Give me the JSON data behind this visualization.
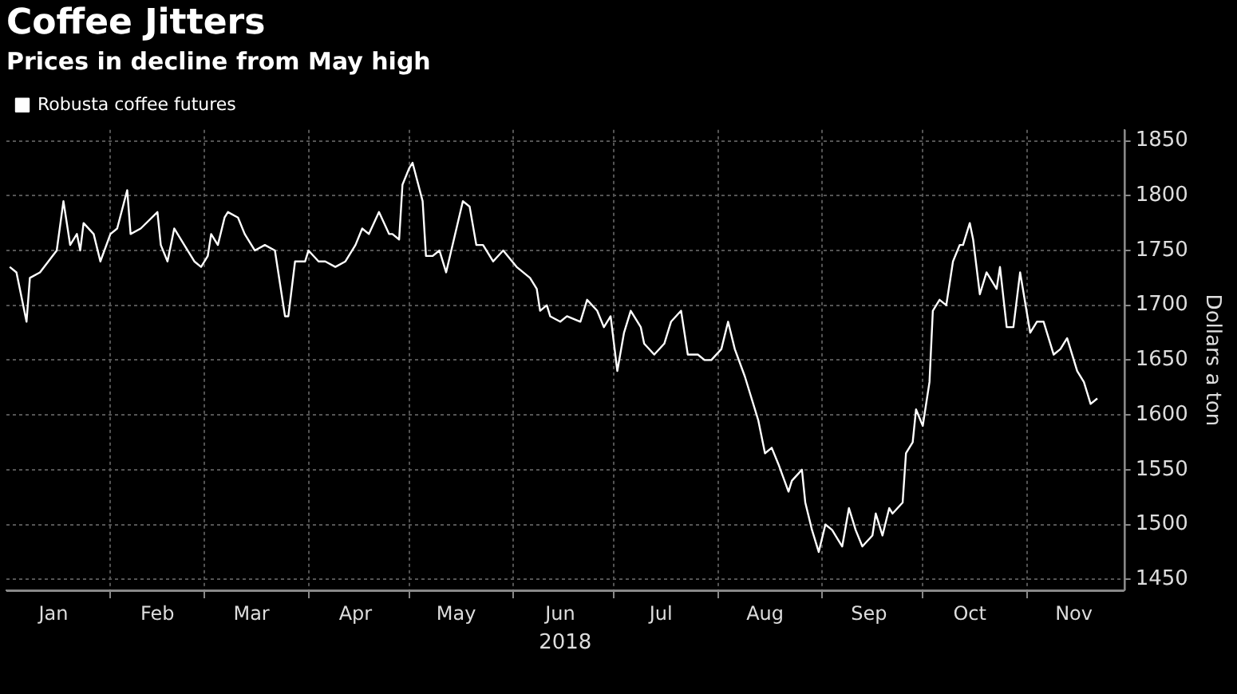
{
  "chart_data": {
    "type": "line",
    "title": "Coffee Jitters",
    "subtitle": "Prices in decline from May high",
    "xlabel": "2018",
    "ylabel": "Dollars a ton",
    "x": [
      "2018-01-02",
      "2018-01-04",
      "2018-01-07",
      "2018-01-08",
      "2018-01-11",
      "2018-01-16",
      "2018-01-18",
      "2018-01-20",
      "2018-01-22",
      "2018-01-23",
      "2018-01-24",
      "2018-01-27",
      "2018-01-29",
      "2018-02-01",
      "2018-02-03",
      "2018-02-06",
      "2018-02-07",
      "2018-02-10",
      "2018-02-15",
      "2018-02-16",
      "2018-02-18",
      "2018-02-20",
      "2018-02-23",
      "2018-02-26",
      "2018-02-28",
      "2018-03-02",
      "2018-03-03",
      "2018-03-05",
      "2018-03-07",
      "2018-03-08",
      "2018-03-11",
      "2018-03-13",
      "2018-03-16",
      "2018-03-19",
      "2018-03-22",
      "2018-03-25",
      "2018-03-26",
      "2018-03-28",
      "2018-03-31",
      "2018-04-01",
      "2018-04-04",
      "2018-04-06",
      "2018-04-09",
      "2018-04-12",
      "2018-04-15",
      "2018-04-17",
      "2018-04-19",
      "2018-04-22",
      "2018-04-25",
      "2018-04-26",
      "2018-04-28",
      "2018-04-29",
      "2018-05-01",
      "2018-05-02",
      "2018-05-05",
      "2018-05-06",
      "2018-05-08",
      "2018-05-10",
      "2018-05-12",
      "2018-05-17",
      "2018-05-19",
      "2018-05-21",
      "2018-05-23",
      "2018-05-26",
      "2018-05-29",
      "2018-06-02",
      "2018-06-06",
      "2018-06-08",
      "2018-06-09",
      "2018-06-11",
      "2018-06-12",
      "2018-06-15",
      "2018-06-17",
      "2018-06-21",
      "2018-06-23",
      "2018-06-26",
      "2018-06-28",
      "2018-06-30",
      "2018-07-02",
      "2018-07-04",
      "2018-07-06",
      "2018-07-09",
      "2018-07-10",
      "2018-07-13",
      "2018-07-16",
      "2018-07-18",
      "2018-07-21",
      "2018-07-23",
      "2018-07-26",
      "2018-07-28",
      "2018-07-30",
      "2018-08-02",
      "2018-08-04",
      "2018-08-06",
      "2018-08-09",
      "2018-08-10",
      "2018-08-13",
      "2018-08-15",
      "2018-08-17",
      "2018-08-19",
      "2018-08-22",
      "2018-08-23",
      "2018-08-26",
      "2018-08-27",
      "2018-08-29",
      "2018-08-31",
      "2018-09-02",
      "2018-09-04",
      "2018-09-05",
      "2018-09-07",
      "2018-09-09",
      "2018-09-11",
      "2018-09-13",
      "2018-09-16",
      "2018-09-17",
      "2018-09-19",
      "2018-09-21",
      "2018-09-22",
      "2018-09-25",
      "2018-09-26",
      "2018-09-28",
      "2018-09-29",
      "2018-10-01",
      "2018-10-03",
      "2018-10-04",
      "2018-10-06",
      "2018-10-08",
      "2018-10-10",
      "2018-10-12",
      "2018-10-13",
      "2018-10-15",
      "2018-10-16",
      "2018-10-18",
      "2018-10-20",
      "2018-10-23",
      "2018-10-24",
      "2018-10-26",
      "2018-10-28",
      "2018-10-30",
      "2018-11-02",
      "2018-11-04",
      "2018-11-06",
      "2018-11-09",
      "2018-11-11",
      "2018-11-13",
      "2018-11-16",
      "2018-11-18",
      "2018-11-20",
      "2018-11-22"
    ],
    "series": [
      {
        "name": "Robusta coffee futures",
        "color": "#ffffff",
        "values": [
          1735,
          1730,
          1685,
          1725,
          1730,
          1750,
          1795,
          1755,
          1765,
          1750,
          1775,
          1765,
          1740,
          1765,
          1770,
          1805,
          1765,
          1770,
          1785,
          1755,
          1740,
          1770,
          1755,
          1740,
          1735,
          1745,
          1765,
          1755,
          1780,
          1785,
          1780,
          1765,
          1750,
          1755,
          1750,
          1690,
          1690,
          1740,
          1740,
          1750,
          1740,
          1740,
          1735,
          1740,
          1755,
          1770,
          1765,
          1785,
          1765,
          1765,
          1760,
          1810,
          1825,
          1830,
          1795,
          1745,
          1745,
          1750,
          1730,
          1795,
          1790,
          1755,
          1755,
          1740,
          1750,
          1735,
          1725,
          1715,
          1695,
          1700,
          1690,
          1685,
          1690,
          1685,
          1705,
          1695,
          1680,
          1690,
          1640,
          1675,
          1695,
          1680,
          1665,
          1655,
          1665,
          1685,
          1695,
          1655,
          1655,
          1650,
          1650,
          1660,
          1685,
          1660,
          1635,
          1625,
          1595,
          1565,
          1570,
          1555,
          1530,
          1540,
          1550,
          1520,
          1495,
          1475,
          1500,
          1495,
          1490,
          1480,
          1515,
          1495,
          1480,
          1490,
          1510,
          1490,
          1515,
          1510,
          1520,
          1565,
          1575,
          1605,
          1590,
          1630,
          1695,
          1705,
          1700,
          1740,
          1755,
          1755,
          1775,
          1760,
          1710,
          1730,
          1715,
          1735,
          1680,
          1680,
          1730,
          1675,
          1685,
          1685,
          1655,
          1660,
          1670,
          1640,
          1630,
          1610,
          1615
        ]
      }
    ],
    "xlim": [
      "2018-01-01",
      "2018-11-30"
    ],
    "xticks": [
      {
        "value": "2018-01-15",
        "label": "Jan"
      },
      {
        "value": "2018-02-01",
        "label": null
      },
      {
        "value": "2018-02-15",
        "label": "Feb"
      },
      {
        "value": "2018-03-01",
        "label": null
      },
      {
        "value": "2018-03-15",
        "label": "Mar"
      },
      {
        "value": "2018-04-01",
        "label": null
      },
      {
        "value": "2018-04-15",
        "label": "Apr"
      },
      {
        "value": "2018-05-01",
        "label": null
      },
      {
        "value": "2018-05-15",
        "label": "May"
      },
      {
        "value": "2018-06-01",
        "label": null
      },
      {
        "value": "2018-06-15",
        "label": "Jun"
      },
      {
        "value": "2018-07-01",
        "label": null
      },
      {
        "value": "2018-07-15",
        "label": "Jul"
      },
      {
        "value": "2018-08-01",
        "label": null
      },
      {
        "value": "2018-08-15",
        "label": "Aug"
      },
      {
        "value": "2018-09-01",
        "label": null
      },
      {
        "value": "2018-09-15",
        "label": "Sep"
      },
      {
        "value": "2018-10-01",
        "label": null
      },
      {
        "value": "2018-10-15",
        "label": "Oct"
      },
      {
        "value": "2018-11-01",
        "label": null
      },
      {
        "value": "2018-11-15",
        "label": "Nov"
      }
    ],
    "ylim": [
      1440,
      1860
    ],
    "yticks": [
      1450,
      1500,
      1550,
      1600,
      1650,
      1700,
      1750,
      1800,
      1850
    ],
    "grid": true,
    "legend": "top left"
  }
}
